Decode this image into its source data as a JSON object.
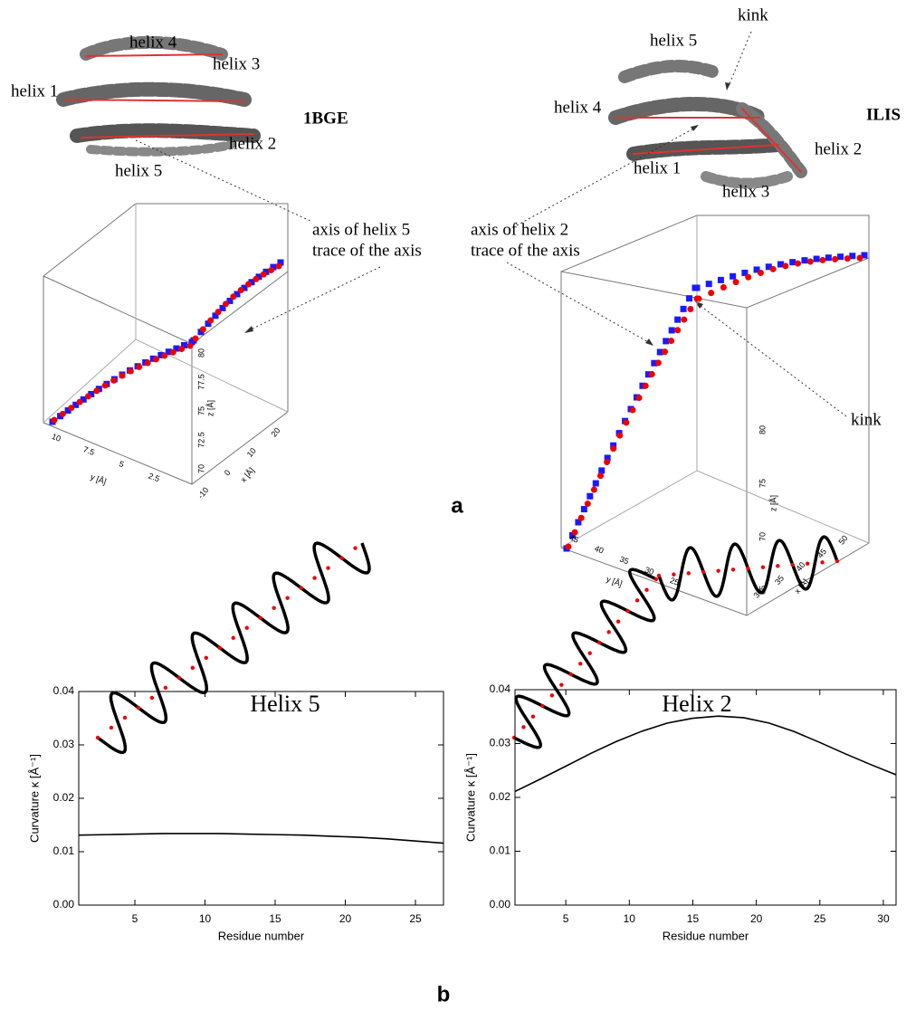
{
  "chart_data": [
    {
      "type": "line",
      "x_label": "Residue number",
      "y_label": "Curvature κ [Å⁻¹]",
      "xlim": [
        1,
        27
      ],
      "xticks": [
        5,
        10,
        15,
        20,
        25
      ],
      "ylim": [
        0,
        0.04
      ],
      "yticks": [
        {
          "value": 0,
          "label": "0.00"
        },
        0.01,
        0.02,
        0.03,
        0.04
      ],
      "series": [
        {
          "color": "#000000",
          "x": [
            1,
            3,
            5,
            7,
            9,
            11,
            13,
            15,
            17,
            19,
            21,
            23,
            25,
            27
          ],
          "values": [
            0.0131,
            0.0132,
            0.0133,
            0.0134,
            0.0134,
            0.0134,
            0.0133,
            0.0132,
            0.0131,
            0.0129,
            0.0127,
            0.0124,
            0.012,
            0.0116
          ]
        }
      ]
    },
    {
      "type": "line",
      "x_label": "Residue number",
      "y_label": "Curvature κ [Å⁻¹]",
      "xlim": [
        1,
        31
      ],
      "xticks": [
        5,
        10,
        15,
        20,
        25,
        30
      ],
      "ylim": [
        0,
        0.04
      ],
      "yticks": [
        {
          "value": 0,
          "label": "0.00"
        },
        0.01,
        0.02,
        0.03,
        0.04
      ],
      "series": [
        {
          "color": "#000000",
          "x": [
            1,
            3,
            5,
            7,
            9,
            11,
            13,
            15,
            17,
            19,
            21,
            23,
            25,
            27,
            29,
            31
          ],
          "values": [
            0.0211,
            0.0234,
            0.0258,
            0.0282,
            0.0304,
            0.0323,
            0.0338,
            0.0347,
            0.0351,
            0.0348,
            0.0338,
            0.0322,
            0.0302,
            0.0281,
            0.0261,
            0.0242
          ]
        }
      ]
    }
  ],
  "figure": {
    "panel_a": "a",
    "panel_b": "b",
    "left": {
      "protein": "1BGE",
      "helices": [
        "helix 1",
        "helix 2",
        "helix 3",
        "helix 4",
        "helix 5"
      ],
      "note_axis": "axis of helix 5",
      "note_trace": "trace of the axis",
      "helix_title": "Helix 5",
      "plot3d": {
        "y_label": "y [Å]",
        "x_label": "x [Å]",
        "z_label": "z [Å]",
        "yticks": [
          10,
          7.5,
          5,
          2.5
        ],
        "xticks": [
          -10,
          0,
          10,
          20
        ],
        "zticks": [
          70,
          72.5,
          75,
          77.5,
          80
        ]
      }
    },
    "right": {
      "protein": "ILIS",
      "helices": [
        "helix 1",
        "helix 2",
        "helix 3",
        "helix 4",
        "helix 5"
      ],
      "kink_top": "kink",
      "kink_side": "kink",
      "note_axis": "axis of helix 2",
      "note_trace": "trace of the axis",
      "helix_title": "Helix 2",
      "plot3d": {
        "y_label": "y [Å]",
        "x_label": "x [Å]",
        "z_label": "z [Å]",
        "yticks": [
          45,
          40,
          35,
          30,
          25
        ],
        "xticks": [
          30,
          35,
          40,
          45,
          50
        ],
        "zticks": [
          65,
          70,
          75,
          80
        ]
      }
    }
  }
}
